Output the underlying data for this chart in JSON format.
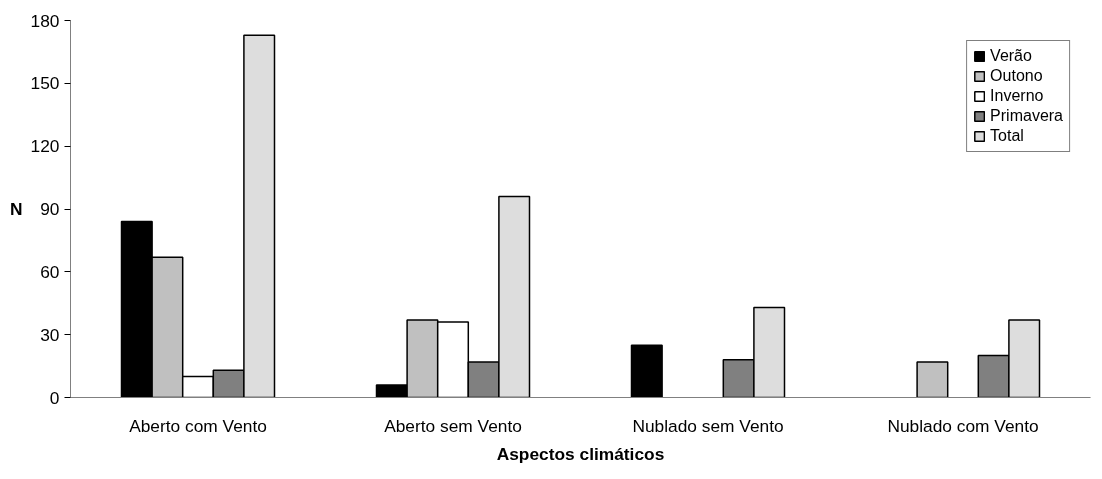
{
  "chart_data": {
    "type": "bar",
    "xlabel": "Aspectos climáticos",
    "ylabel": "N",
    "categories": [
      "Aberto com Vento",
      "Aberto sem Vento",
      "Nublado sem Vento",
      "Nublado com Vento"
    ],
    "series": [
      {
        "name": "Verão",
        "color": "#000000",
        "values": [
          84,
          6,
          25,
          null
        ]
      },
      {
        "name": "Outono",
        "color": "#c0c0c0",
        "values": [
          67,
          37,
          null,
          17
        ]
      },
      {
        "name": "Inverno",
        "color": "#ffffff",
        "values": [
          10,
          36,
          null,
          null
        ]
      },
      {
        "name": "Primavera",
        "color": "#808080",
        "values": [
          13,
          17,
          18,
          20
        ]
      },
      {
        "name": "Total",
        "color": "#dddddd",
        "values": [
          173,
          96,
          43,
          37
        ]
      }
    ],
    "ylim": [
      0,
      180
    ],
    "yticks": [
      0,
      30,
      60,
      90,
      120,
      150,
      180
    ],
    "grid": false,
    "legend": "top right"
  }
}
